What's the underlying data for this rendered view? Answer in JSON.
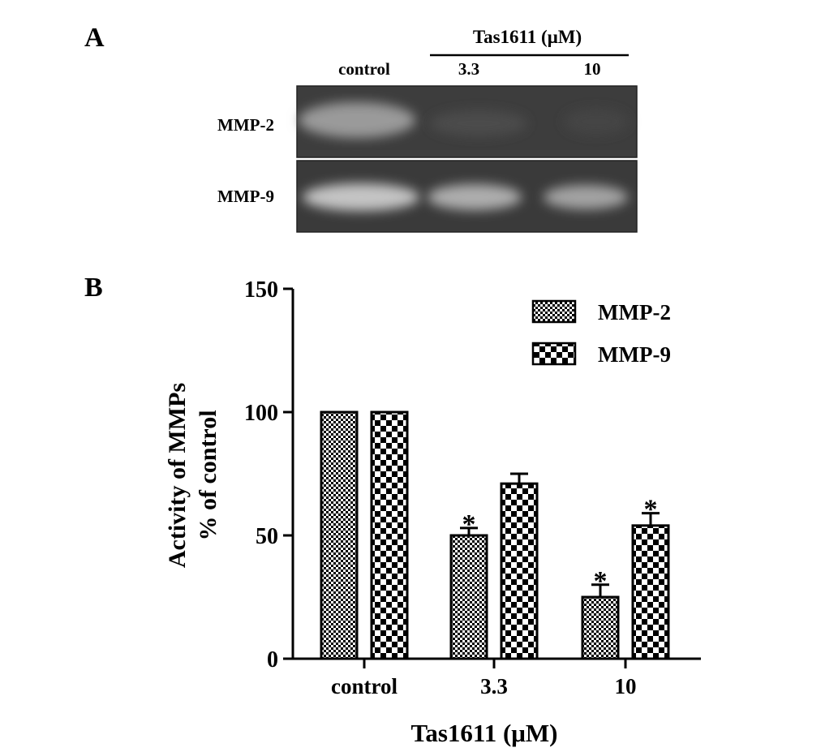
{
  "panel_a": {
    "label": "A",
    "treatment_label": "Tas1611 (μM)",
    "lane_labels": [
      "control",
      "3.3",
      "10"
    ],
    "row_labels": [
      "MMP-2",
      "MMP-9"
    ]
  },
  "panel_b": {
    "label": "B"
  },
  "chart_data": {
    "type": "bar",
    "categories": [
      "control",
      "3.3",
      "10"
    ],
    "series": [
      {
        "name": "MMP-2",
        "values": [
          100,
          50,
          25
        ],
        "errors": [
          0,
          3,
          5
        ],
        "significant": [
          false,
          true,
          true
        ],
        "pattern": "fine-checker"
      },
      {
        "name": "MMP-9",
        "values": [
          100,
          71,
          54
        ],
        "errors": [
          0,
          4,
          5
        ],
        "significant": [
          false,
          false,
          true
        ],
        "pattern": "coarse-checker"
      }
    ],
    "significance_marker": "*",
    "xlabel": "Tas1611 (μM)",
    "ylabel_lines": [
      "Activity of MMPs",
      "% of control"
    ],
    "ylim": [
      0,
      150
    ],
    "yticks": [
      0,
      50,
      100,
      150
    ],
    "legend_position": "top-right",
    "grid": false
  }
}
